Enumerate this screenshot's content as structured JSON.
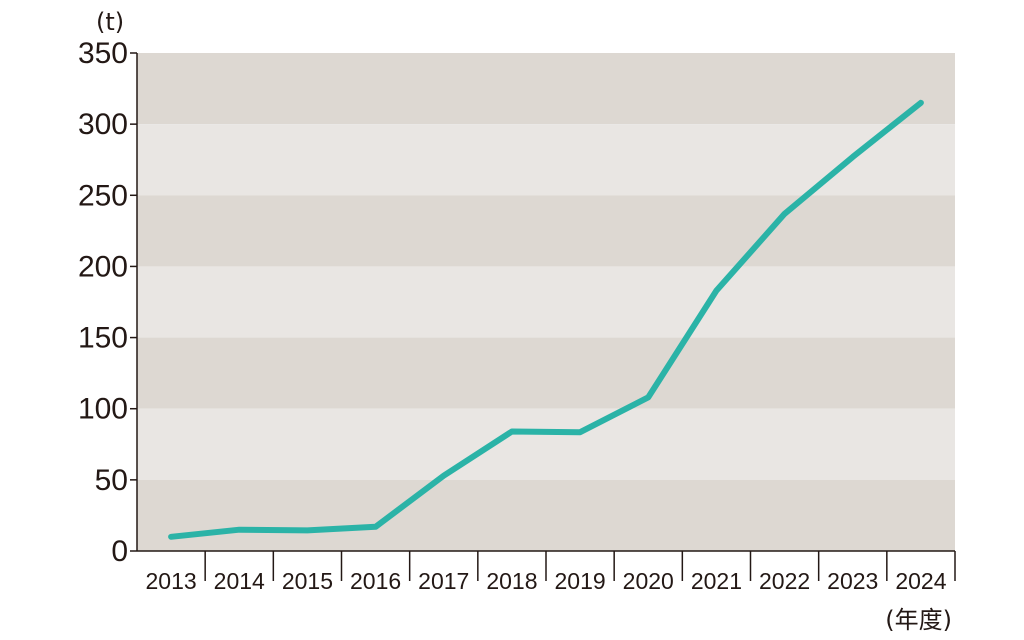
{
  "chart_data": {
    "type": "line",
    "title": "",
    "ylabel": "(t)",
    "xlabel": "(年度)",
    "categories": [
      "2013",
      "2014",
      "2015",
      "2016",
      "2017",
      "2018",
      "2019",
      "2020",
      "2021",
      "2022",
      "2023",
      "2024"
    ],
    "series": [
      {
        "values": [
          10,
          15,
          14.5,
          17,
          53,
          84,
          83.5,
          108,
          183,
          237,
          277,
          315
        ]
      }
    ],
    "ylim": [
      0,
      350
    ],
    "yticks": [
      0,
      50,
      100,
      150,
      200,
      250,
      300,
      350
    ],
    "grid": "alternating horizontal bands",
    "colors": {
      "line": "#2bb3a7",
      "band_dark": "#ddd8d2",
      "band_light": "#e9e6e3",
      "axis": "#231815"
    }
  }
}
